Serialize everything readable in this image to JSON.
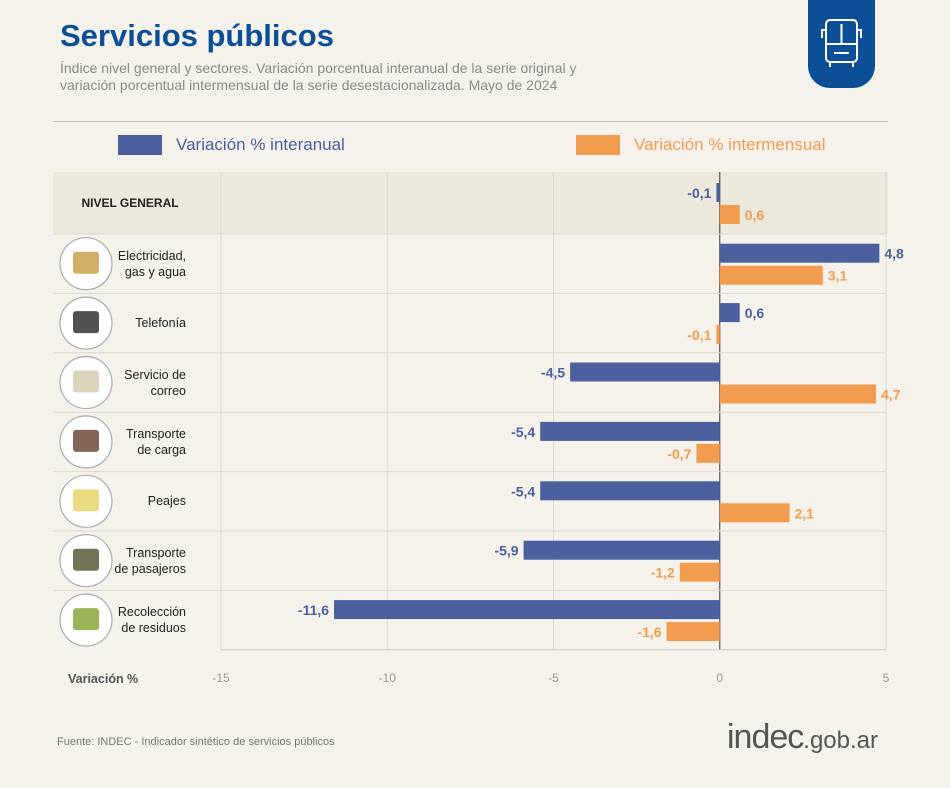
{
  "header": {
    "title": "Servicios públicos",
    "subtitle": "Índice nivel general y sectores. Variación porcentual interanual de la serie original y variación porcentual intermensual de la serie desestacionalizada. Mayo de 2024",
    "badge_icon": "bus-icon"
  },
  "colors": {
    "interanual": "#4c5f9e",
    "intermensual": "#f19c4e",
    "title": "#0d4f96",
    "header_row": "#ece8dc"
  },
  "chart_data": {
    "type": "bar",
    "orientation": "horizontal",
    "title": "Servicios públicos",
    "xlabel": "Variación %",
    "xlim": [
      -15,
      5
    ],
    "xticks": [
      "-15",
      "-10",
      "-5",
      "0",
      "5"
    ],
    "grid": true,
    "legend": "top",
    "categories": [
      "NIVEL GENERAL",
      "Electricidad,\ngas y agua",
      "Telefonía",
      "Servicio de\ncorreo",
      "Transporte\nde carga",
      "Peajes",
      "Transporte\nde pasajeros",
      "Recolección\nde residuos"
    ],
    "category_icons": [
      "",
      "utilities-icon",
      "antenna-tower-icon",
      "mail-package-icon",
      "truck-icon",
      "toll-barrier-icon",
      "bus-icon",
      "garbage-container-icon"
    ],
    "series": [
      {
        "name": "Variación % interanual",
        "values": [
          -0.1,
          4.8,
          0.6,
          -4.5,
          -5.4,
          -5.4,
          -5.9,
          -11.6
        ],
        "labels": [
          "-0,1",
          "4,8",
          "0,6",
          "-4,5",
          "-5,4",
          "-5,4",
          "-5,9",
          "-11,6"
        ]
      },
      {
        "name": "Variación % intermensual",
        "values": [
          0.6,
          3.1,
          -0.1,
          4.7,
          -0.7,
          2.1,
          -1.2,
          -1.6
        ],
        "labels": [
          "0,6",
          "3,1",
          "-0,1",
          "4,7",
          "-0,7",
          "2,1",
          "-1,2",
          "-1,6"
        ]
      }
    ]
  },
  "footer": {
    "source": "Fuente: INDEC -  Indicador sintético de servicios públicos",
    "logo_main": "indec",
    "logo_domain": ".gob.ar"
  }
}
